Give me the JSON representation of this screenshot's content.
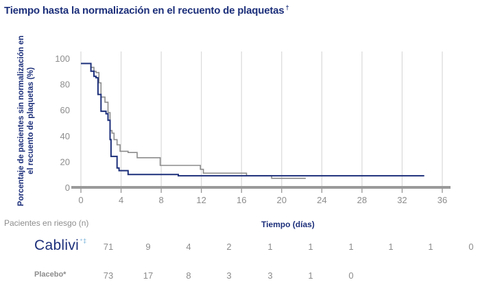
{
  "title": "Tiempo hasta la normalización en el recuento de plaquetas",
  "title_mark": "†",
  "risk": {
    "title": "Pacientes en riesgo (n)",
    "rows": [
      {
        "label": "Cablivi",
        "label_mark": "⁺‡",
        "values": [
          "71",
          "9",
          "4",
          "2",
          "1",
          "1",
          "1",
          "1",
          "1",
          "0"
        ]
      },
      {
        "label": "Placebo*",
        "values": [
          "73",
          "17",
          "8",
          "3",
          "3",
          "1",
          "0"
        ]
      }
    ]
  },
  "chart_data": {
    "type": "line",
    "step": true,
    "xlabel": "Tiempo (días)",
    "ylabel": "Porcentaje de pacientes sin normalización en el recuento de plaquetas (%)",
    "xlim": [
      0,
      36
    ],
    "ylim": [
      0,
      100
    ],
    "xticks": [
      0,
      4,
      8,
      12,
      16,
      20,
      24,
      28,
      32,
      36
    ],
    "yticks": [
      0,
      20,
      40,
      60,
      80,
      100
    ],
    "grid": "vertical",
    "colors": {
      "cablivi": "#1c2f7a",
      "placebo": "#8c8c8c",
      "grid": "#d9d9d9",
      "axis": "#8c8c8c"
    },
    "series": [
      {
        "key": "cablivi",
        "x": [
          0,
          1,
          1.3,
          1.5,
          1.7,
          2.0,
          2.5,
          2.7,
          2.9,
          3.0,
          3.2,
          3.6,
          3.8,
          4.7,
          9.7,
          34.2
        ],
        "y": [
          96,
          90,
          86,
          85,
          72,
          59,
          57,
          52,
          37,
          24,
          24,
          15,
          13,
          10,
          9,
          9
        ]
      },
      {
        "key": "placebo",
        "x": [
          0,
          1.0,
          1.3,
          1.5,
          1.8,
          2.0,
          2.4,
          2.7,
          2.9,
          3.1,
          3.3,
          3.6,
          3.9,
          4.7,
          5.6,
          7.9,
          9.7,
          11.9,
          12.2,
          16.5,
          19.0,
          22.4
        ],
        "y": [
          96,
          93,
          90,
          89,
          81,
          70,
          66,
          58,
          44,
          42,
          37,
          33,
          28,
          27,
          23,
          17,
          17,
          14,
          11,
          9,
          7,
          7
        ]
      }
    ]
  }
}
